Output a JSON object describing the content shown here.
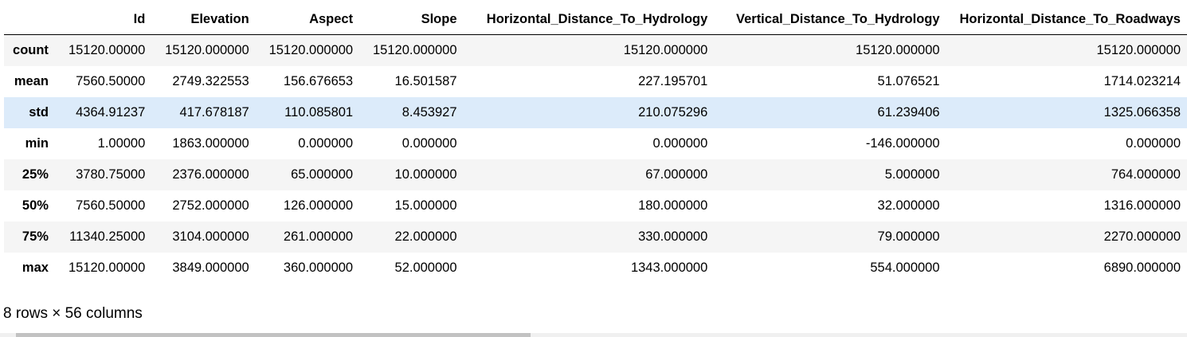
{
  "table": {
    "columns": [
      "",
      "Id",
      "Elevation",
      "Aspect",
      "Slope",
      "Horizontal_Distance_To_Hydrology",
      "Vertical_Distance_To_Hydrology",
      "Horizontal_Distance_To_Roadways"
    ],
    "rows": [
      {
        "label": "count",
        "values": [
          "15120.00000",
          "15120.000000",
          "15120.000000",
          "15120.000000",
          "15120.000000",
          "15120.000000",
          "15120.000000"
        ]
      },
      {
        "label": "mean",
        "values": [
          "7560.50000",
          "2749.322553",
          "156.676653",
          "16.501587",
          "227.195701",
          "51.076521",
          "1714.023214"
        ]
      },
      {
        "label": "std",
        "values": [
          "4364.91237",
          "417.678187",
          "110.085801",
          "8.453927",
          "210.075296",
          "61.239406",
          "1325.066358"
        ]
      },
      {
        "label": "min",
        "values": [
          "1.00000",
          "1863.000000",
          "0.000000",
          "0.000000",
          "0.000000",
          "-146.000000",
          "0.000000"
        ]
      },
      {
        "label": "25%",
        "values": [
          "3780.75000",
          "2376.000000",
          "65.000000",
          "10.000000",
          "67.000000",
          "5.000000",
          "764.000000"
        ]
      },
      {
        "label": "50%",
        "values": [
          "7560.50000",
          "2752.000000",
          "126.000000",
          "15.000000",
          "180.000000",
          "32.000000",
          "1316.000000"
        ]
      },
      {
        "label": "75%",
        "values": [
          "11340.25000",
          "3104.000000",
          "261.000000",
          "22.000000",
          "330.000000",
          "79.000000",
          "2270.000000"
        ]
      },
      {
        "label": "max",
        "values": [
          "15120.00000",
          "3849.000000",
          "360.000000",
          "52.000000",
          "1343.000000",
          "554.000000",
          "6890.000000"
        ]
      }
    ],
    "hovered_row": 2
  },
  "footer": {
    "shape_text": "8 rows × 56 columns"
  },
  "colors": {
    "row_stripe": "#f5f5f5",
    "row_hover": "#dcebfa",
    "scroll_track": "#f0f0f0",
    "scroll_thumb": "#c2c2c2"
  }
}
